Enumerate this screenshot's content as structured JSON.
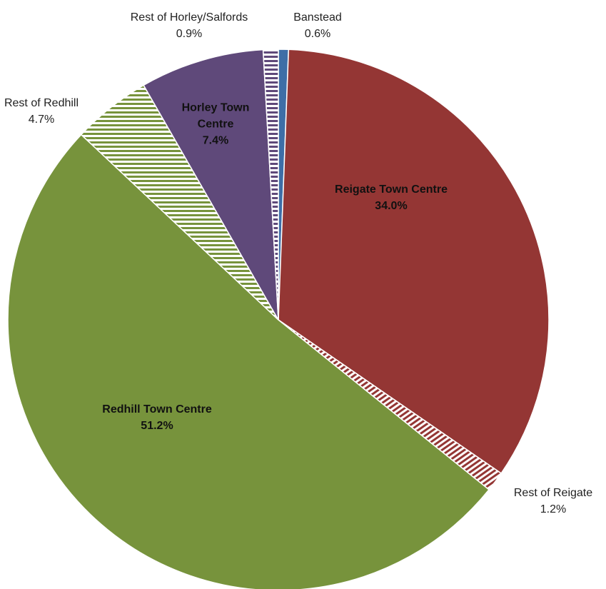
{
  "chart_data": {
    "type": "pie",
    "categories": [
      "Banstead",
      "Reigate Town Centre",
      "Rest of Reigate",
      "Redhill Town Centre",
      "Rest of Redhill",
      "Horley Town Centre",
      "Rest of Horley/Salfords"
    ],
    "values": [
      0.6,
      34.0,
      1.2,
      51.2,
      4.7,
      7.4,
      0.9
    ],
    "value_labels": [
      "0.6%",
      "34.0%",
      "1.2%",
      "51.2%",
      "4.7%",
      "7.4%",
      "0.9%"
    ],
    "colors": [
      "#3e6ea6",
      "#943634",
      "#943634",
      "#77933c",
      "#77933c",
      "#5f497a",
      "#5f497a"
    ],
    "hatch": [
      "solid",
      "solid",
      "diagonal",
      "solid",
      "horizontal",
      "solid",
      "horizontal"
    ]
  }
}
